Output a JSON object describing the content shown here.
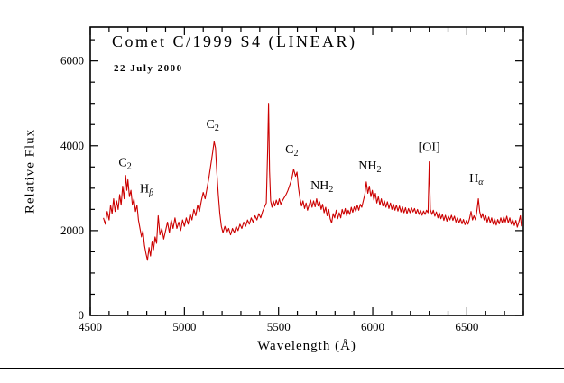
{
  "page": {
    "background": "#ffffff"
  },
  "chart_data": {
    "type": "line",
    "title": "Comet C/1999 S4 (LINEAR)",
    "subtitle": "22 July 2000",
    "xlabel": "Wavelength (Å)",
    "ylabel": "Relative Flux",
    "xlim": [
      4500,
      6800
    ],
    "ylim": [
      0,
      6800
    ],
    "x_major_ticks": [
      4500,
      5000,
      5500,
      6000,
      6500
    ],
    "x_minor_step": 100,
    "y_major_ticks": [
      0,
      2000,
      4000,
      6000
    ],
    "y_minor_step": 500,
    "line_color": "#cc0000",
    "frame_color": "#000000",
    "annotations": [
      {
        "id": "c2-a",
        "main": "C",
        "sub": "2",
        "x": 4685,
        "y": 3520
      },
      {
        "id": "h-beta",
        "main": "H",
        "sub": "β",
        "sub_italic": true,
        "x": 4800,
        "y": 2900
      },
      {
        "id": "c2-b",
        "main": "C",
        "sub": "2",
        "x": 5150,
        "y": 4420
      },
      {
        "id": "c2-c",
        "main": "C",
        "sub": "2",
        "x": 5570,
        "y": 3820
      },
      {
        "id": "nh2-a",
        "main": "NH",
        "sub": "2",
        "x": 5730,
        "y": 2980
      },
      {
        "id": "nh2-b",
        "main": "NH",
        "sub": "2",
        "x": 5985,
        "y": 3440
      },
      {
        "id": "oi",
        "main": "[OI]",
        "x": 6300,
        "y": 3880
      },
      {
        "id": "h-alpha",
        "main": "H",
        "sub": "α",
        "sub_italic": true,
        "x": 6550,
        "y": 3150
      }
    ],
    "series": [
      {
        "name": "spectrum",
        "points": [
          [
            4570,
            2300
          ],
          [
            4580,
            2150
          ],
          [
            4590,
            2450
          ],
          [
            4600,
            2250
          ],
          [
            4608,
            2600
          ],
          [
            4616,
            2400
          ],
          [
            4624,
            2750
          ],
          [
            4632,
            2450
          ],
          [
            4640,
            2700
          ],
          [
            4648,
            2500
          ],
          [
            4656,
            2850
          ],
          [
            4664,
            2600
          ],
          [
            4672,
            3050
          ],
          [
            4680,
            2750
          ],
          [
            4688,
            3300
          ],
          [
            4694,
            2950
          ],
          [
            4700,
            3200
          ],
          [
            4708,
            2800
          ],
          [
            4716,
            2950
          ],
          [
            4724,
            2600
          ],
          [
            4732,
            2750
          ],
          [
            4740,
            2450
          ],
          [
            4748,
            2600
          ],
          [
            4756,
            2250
          ],
          [
            4764,
            2050
          ],
          [
            4772,
            1850
          ],
          [
            4780,
            2000
          ],
          [
            4788,
            1650
          ],
          [
            4796,
            1450
          ],
          [
            4804,
            1300
          ],
          [
            4812,
            1600
          ],
          [
            4820,
            1400
          ],
          [
            4828,
            1750
          ],
          [
            4836,
            1550
          ],
          [
            4844,
            1850
          ],
          [
            4852,
            1700
          ],
          [
            4861,
            2350
          ],
          [
            4870,
            1900
          ],
          [
            4880,
            2050
          ],
          [
            4890,
            1800
          ],
          [
            4900,
            2000
          ],
          [
            4910,
            2200
          ],
          [
            4920,
            1950
          ],
          [
            4930,
            2250
          ],
          [
            4940,
            2050
          ],
          [
            4950,
            2300
          ],
          [
            4960,
            2050
          ],
          [
            4970,
            2200
          ],
          [
            4980,
            2000
          ],
          [
            4990,
            2250
          ],
          [
            5000,
            2100
          ],
          [
            5010,
            2300
          ],
          [
            5020,
            2150
          ],
          [
            5030,
            2400
          ],
          [
            5040,
            2250
          ],
          [
            5050,
            2500
          ],
          [
            5060,
            2350
          ],
          [
            5070,
            2600
          ],
          [
            5080,
            2450
          ],
          [
            5090,
            2700
          ],
          [
            5100,
            2900
          ],
          [
            5110,
            2750
          ],
          [
            5120,
            3000
          ],
          [
            5130,
            3250
          ],
          [
            5140,
            3550
          ],
          [
            5150,
            3850
          ],
          [
            5158,
            4100
          ],
          [
            5165,
            3950
          ],
          [
            5172,
            3400
          ],
          [
            5180,
            2850
          ],
          [
            5188,
            2400
          ],
          [
            5196,
            2100
          ],
          [
            5205,
            1950
          ],
          [
            5215,
            2100
          ],
          [
            5225,
            1950
          ],
          [
            5235,
            2050
          ],
          [
            5245,
            1900
          ],
          [
            5255,
            2050
          ],
          [
            5265,
            1950
          ],
          [
            5275,
            2100
          ],
          [
            5285,
            2000
          ],
          [
            5295,
            2150
          ],
          [
            5305,
            2050
          ],
          [
            5315,
            2200
          ],
          [
            5325,
            2100
          ],
          [
            5335,
            2250
          ],
          [
            5345,
            2150
          ],
          [
            5355,
            2300
          ],
          [
            5365,
            2200
          ],
          [
            5375,
            2350
          ],
          [
            5385,
            2250
          ],
          [
            5395,
            2400
          ],
          [
            5405,
            2300
          ],
          [
            5415,
            2450
          ],
          [
            5425,
            2550
          ],
          [
            5435,
            2650
          ],
          [
            5442,
            3900
          ],
          [
            5447,
            5000
          ],
          [
            5452,
            3400
          ],
          [
            5458,
            2700
          ],
          [
            5465,
            2550
          ],
          [
            5472,
            2700
          ],
          [
            5480,
            2580
          ],
          [
            5488,
            2720
          ],
          [
            5496,
            2600
          ],
          [
            5504,
            2750
          ],
          [
            5512,
            2620
          ],
          [
            5520,
            2700
          ],
          [
            5530,
            2780
          ],
          [
            5540,
            2850
          ],
          [
            5550,
            2950
          ],
          [
            5560,
            3080
          ],
          [
            5570,
            3220
          ],
          [
            5580,
            3450
          ],
          [
            5590,
            3280
          ],
          [
            5598,
            3380
          ],
          [
            5606,
            3000
          ],
          [
            5614,
            2750
          ],
          [
            5622,
            2580
          ],
          [
            5630,
            2700
          ],
          [
            5638,
            2520
          ],
          [
            5646,
            2650
          ],
          [
            5654,
            2480
          ],
          [
            5662,
            2600
          ],
          [
            5670,
            2720
          ],
          [
            5678,
            2550
          ],
          [
            5686,
            2700
          ],
          [
            5694,
            2560
          ],
          [
            5702,
            2750
          ],
          [
            5710,
            2580
          ],
          [
            5718,
            2680
          ],
          [
            5726,
            2500
          ],
          [
            5734,
            2620
          ],
          [
            5742,
            2420
          ],
          [
            5750,
            2550
          ],
          [
            5758,
            2350
          ],
          [
            5766,
            2500
          ],
          [
            5774,
            2280
          ],
          [
            5782,
            2180
          ],
          [
            5790,
            2400
          ],
          [
            5798,
            2300
          ],
          [
            5806,
            2480
          ],
          [
            5814,
            2280
          ],
          [
            5822,
            2420
          ],
          [
            5830,
            2300
          ],
          [
            5838,
            2500
          ],
          [
            5846,
            2380
          ],
          [
            5854,
            2520
          ],
          [
            5862,
            2350
          ],
          [
            5870,
            2480
          ],
          [
            5878,
            2380
          ],
          [
            5886,
            2550
          ],
          [
            5894,
            2430
          ],
          [
            5902,
            2560
          ],
          [
            5910,
            2450
          ],
          [
            5918,
            2600
          ],
          [
            5926,
            2480
          ],
          [
            5934,
            2620
          ],
          [
            5942,
            2550
          ],
          [
            5950,
            2700
          ],
          [
            5958,
            2850
          ],
          [
            5966,
            3150
          ],
          [
            5974,
            2880
          ],
          [
            5982,
            3050
          ],
          [
            5990,
            2800
          ],
          [
            5998,
            2950
          ],
          [
            6006,
            2720
          ],
          [
            6014,
            2880
          ],
          [
            6022,
            2650
          ],
          [
            6030,
            2800
          ],
          [
            6038,
            2600
          ],
          [
            6046,
            2750
          ],
          [
            6054,
            2580
          ],
          [
            6062,
            2700
          ],
          [
            6070,
            2550
          ],
          [
            6078,
            2680
          ],
          [
            6086,
            2520
          ],
          [
            6094,
            2650
          ],
          [
            6102,
            2500
          ],
          [
            6110,
            2620
          ],
          [
            6118,
            2480
          ],
          [
            6126,
            2600
          ],
          [
            6134,
            2460
          ],
          [
            6142,
            2580
          ],
          [
            6150,
            2440
          ],
          [
            6158,
            2560
          ],
          [
            6166,
            2420
          ],
          [
            6174,
            2540
          ],
          [
            6182,
            2400
          ],
          [
            6190,
            2520
          ],
          [
            6198,
            2420
          ],
          [
            6206,
            2540
          ],
          [
            6214,
            2440
          ],
          [
            6222,
            2520
          ],
          [
            6230,
            2400
          ],
          [
            6238,
            2500
          ],
          [
            6246,
            2380
          ],
          [
            6254,
            2480
          ],
          [
            6262,
            2360
          ],
          [
            6270,
            2460
          ],
          [
            6278,
            2380
          ],
          [
            6286,
            2480
          ],
          [
            6294,
            2420
          ],
          [
            6300,
            3620
          ],
          [
            6306,
            2500
          ],
          [
            6314,
            2380
          ],
          [
            6322,
            2480
          ],
          [
            6330,
            2340
          ],
          [
            6338,
            2440
          ],
          [
            6346,
            2300
          ],
          [
            6354,
            2420
          ],
          [
            6362,
            2280
          ],
          [
            6370,
            2380
          ],
          [
            6378,
            2240
          ],
          [
            6386,
            2360
          ],
          [
            6394,
            2220
          ],
          [
            6402,
            2340
          ],
          [
            6410,
            2250
          ],
          [
            6418,
            2360
          ],
          [
            6426,
            2240
          ],
          [
            6434,
            2340
          ],
          [
            6442,
            2200
          ],
          [
            6450,
            2300
          ],
          [
            6458,
            2180
          ],
          [
            6466,
            2280
          ],
          [
            6474,
            2160
          ],
          [
            6482,
            2260
          ],
          [
            6490,
            2140
          ],
          [
            6498,
            2240
          ],
          [
            6506,
            2150
          ],
          [
            6514,
            2280
          ],
          [
            6522,
            2450
          ],
          [
            6530,
            2250
          ],
          [
            6538,
            2350
          ],
          [
            6546,
            2250
          ],
          [
            6554,
            2500
          ],
          [
            6561,
            2750
          ],
          [
            6568,
            2450
          ],
          [
            6576,
            2300
          ],
          [
            6584,
            2400
          ],
          [
            6592,
            2250
          ],
          [
            6600,
            2350
          ],
          [
            6608,
            2200
          ],
          [
            6616,
            2320
          ],
          [
            6624,
            2180
          ],
          [
            6632,
            2300
          ],
          [
            6640,
            2150
          ],
          [
            6648,
            2280
          ],
          [
            6656,
            2130
          ],
          [
            6664,
            2260
          ],
          [
            6672,
            2160
          ],
          [
            6680,
            2300
          ],
          [
            6688,
            2180
          ],
          [
            6696,
            2320
          ],
          [
            6704,
            2200
          ],
          [
            6712,
            2340
          ],
          [
            6720,
            2180
          ],
          [
            6728,
            2300
          ],
          [
            6736,
            2150
          ],
          [
            6744,
            2260
          ],
          [
            6752,
            2120
          ],
          [
            6760,
            2240
          ],
          [
            6768,
            2080
          ],
          [
            6776,
            2200
          ],
          [
            6784,
            2350
          ],
          [
            6790,
            2100
          ]
        ]
      }
    ]
  }
}
